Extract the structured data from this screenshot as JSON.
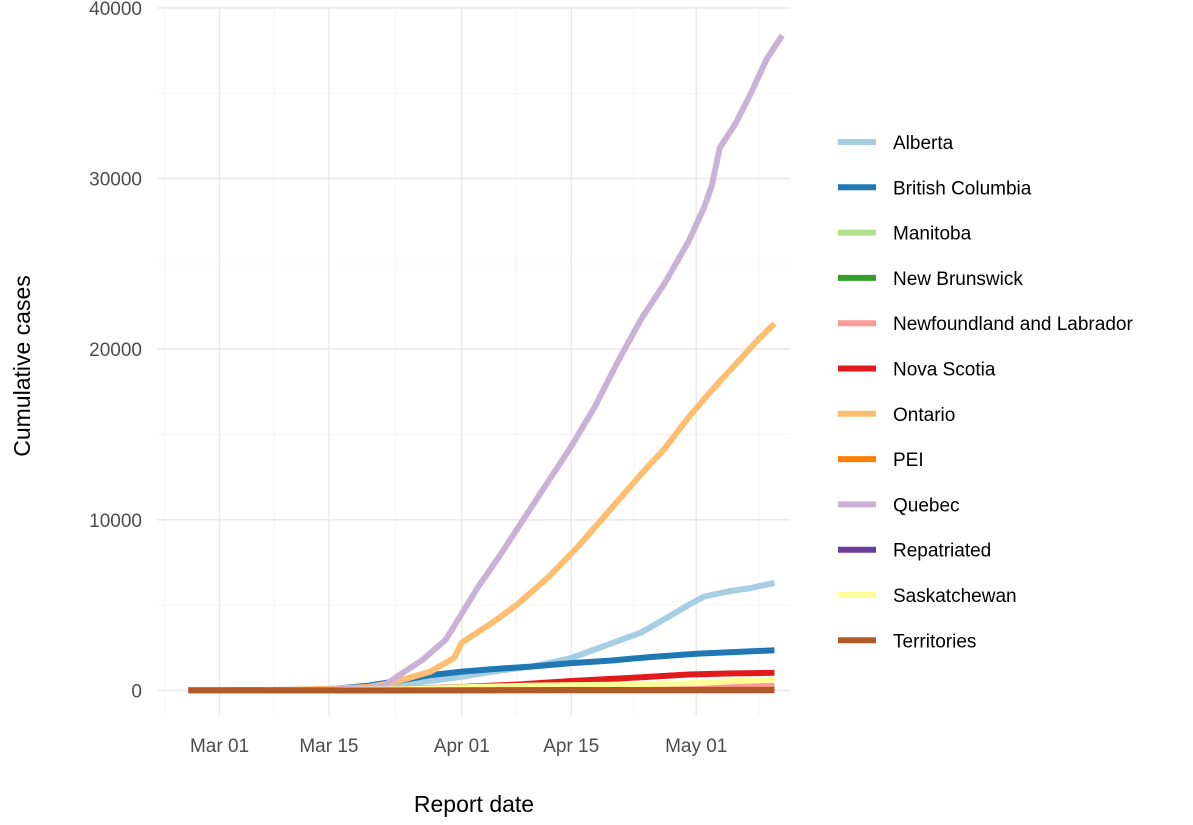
{
  "chart_data": {
    "type": "line",
    "title": "",
    "xlabel": "Report date",
    "ylabel": "Cumulative cases",
    "x_ticks": [
      "Mar 01",
      "Mar 15",
      "Apr 01",
      "Apr 15",
      "May 01"
    ],
    "y_ticks": [
      "0",
      "10000",
      "20000",
      "30000",
      "40000"
    ],
    "xlim": [
      "2020-02-22",
      "2020-05-13"
    ],
    "ylim": [
      -1500,
      40000
    ],
    "grid": true,
    "legend": "right",
    "series": [
      {
        "name": "Alberta",
        "color": "#a6cee3",
        "points": [
          [
            "2020-02-26",
            0
          ],
          [
            "2020-03-05",
            0
          ],
          [
            "2020-03-15",
            40
          ],
          [
            "2020-03-22",
            250
          ],
          [
            "2020-03-28",
            550
          ],
          [
            "2020-04-01",
            800
          ],
          [
            "2020-04-05",
            1100
          ],
          [
            "2020-04-10",
            1400
          ],
          [
            "2020-04-15",
            1900
          ],
          [
            "2020-04-18",
            2400
          ],
          [
            "2020-04-21",
            2900
          ],
          [
            "2020-04-24",
            3400
          ],
          [
            "2020-04-27",
            4200
          ],
          [
            "2020-04-30",
            5000
          ],
          [
            "2020-05-02",
            5500
          ],
          [
            "2020-05-05",
            5800
          ],
          [
            "2020-05-08",
            6000
          ],
          [
            "2020-05-11",
            6300
          ]
        ]
      },
      {
        "name": "British Columbia",
        "color": "#1f78b4",
        "points": [
          [
            "2020-02-26",
            0
          ],
          [
            "2020-03-05",
            10
          ],
          [
            "2020-03-10",
            30
          ],
          [
            "2020-03-15",
            70
          ],
          [
            "2020-03-20",
            270
          ],
          [
            "2020-03-25",
            650
          ],
          [
            "2020-03-28",
            900
          ],
          [
            "2020-04-01",
            1100
          ],
          [
            "2020-04-05",
            1250
          ],
          [
            "2020-04-10",
            1400
          ],
          [
            "2020-04-15",
            1600
          ],
          [
            "2020-04-20",
            1750
          ],
          [
            "2020-04-25",
            1950
          ],
          [
            "2020-05-01",
            2150
          ],
          [
            "2020-05-06",
            2250
          ],
          [
            "2020-05-11",
            2350
          ]
        ]
      },
      {
        "name": "Manitoba",
        "color": "#b2df8a",
        "points": [
          [
            "2020-02-26",
            0
          ],
          [
            "2020-03-15",
            5
          ],
          [
            "2020-03-25",
            50
          ],
          [
            "2020-04-01",
            150
          ],
          [
            "2020-04-10",
            230
          ],
          [
            "2020-04-20",
            260
          ],
          [
            "2020-05-01",
            275
          ],
          [
            "2020-05-11",
            285
          ]
        ]
      },
      {
        "name": "New Brunswick",
        "color": "#33a02c",
        "points": [
          [
            "2020-02-26",
            0
          ],
          [
            "2020-03-15",
            2
          ],
          [
            "2020-03-25",
            20
          ],
          [
            "2020-04-01",
            80
          ],
          [
            "2020-04-10",
            115
          ],
          [
            "2020-04-20",
            118
          ],
          [
            "2020-05-11",
            120
          ]
        ]
      },
      {
        "name": "Newfoundland and Labrador",
        "color": "#fb9a99",
        "points": [
          [
            "2020-02-26",
            0
          ],
          [
            "2020-03-15",
            2
          ],
          [
            "2020-03-22",
            30
          ],
          [
            "2020-03-28",
            150
          ],
          [
            "2020-04-01",
            200
          ],
          [
            "2020-04-10",
            240
          ],
          [
            "2020-04-20",
            255
          ],
          [
            "2020-05-11",
            261
          ]
        ]
      },
      {
        "name": "Nova Scotia",
        "color": "#e31a1c",
        "points": [
          [
            "2020-02-26",
            0
          ],
          [
            "2020-03-15",
            5
          ],
          [
            "2020-03-25",
            70
          ],
          [
            "2020-04-01",
            200
          ],
          [
            "2020-04-08",
            340
          ],
          [
            "2020-04-15",
            550
          ],
          [
            "2020-04-22",
            720
          ],
          [
            "2020-04-30",
            930
          ],
          [
            "2020-05-05",
            990
          ],
          [
            "2020-05-11",
            1030
          ]
        ]
      },
      {
        "name": "Ontario",
        "color": "#fdbf6f",
        "points": [
          [
            "2020-02-26",
            0
          ],
          [
            "2020-03-05",
            20
          ],
          [
            "2020-03-10",
            40
          ],
          [
            "2020-03-15",
            100
          ],
          [
            "2020-03-20",
            200
          ],
          [
            "2020-03-22",
            350
          ],
          [
            "2020-03-25",
            700
          ],
          [
            "2020-03-28",
            1100
          ],
          [
            "2020-03-31",
            1900
          ],
          [
            "2020-04-01",
            2800
          ],
          [
            "2020-04-05",
            4000
          ],
          [
            "2020-04-08",
            5000
          ],
          [
            "2020-04-12",
            6600
          ],
          [
            "2020-04-16",
            8500
          ],
          [
            "2020-04-20",
            10600
          ],
          [
            "2020-04-24",
            12700
          ],
          [
            "2020-04-27",
            14200
          ],
          [
            "2020-04-30",
            16000
          ],
          [
            "2020-05-03",
            17600
          ],
          [
            "2020-05-06",
            19100
          ],
          [
            "2020-05-09",
            20600
          ],
          [
            "2020-05-11",
            21500
          ]
        ]
      },
      {
        "name": "PEI",
        "color": "#ff7f00",
        "points": [
          [
            "2020-02-26",
            0
          ],
          [
            "2020-03-15",
            1
          ],
          [
            "2020-04-01",
            20
          ],
          [
            "2020-04-10",
            25
          ],
          [
            "2020-05-11",
            27
          ]
        ]
      },
      {
        "name": "Quebec",
        "color": "#cab2d6",
        "points": [
          [
            "2020-02-26",
            0
          ],
          [
            "2020-03-05",
            0
          ],
          [
            "2020-03-15",
            30
          ],
          [
            "2020-03-20",
            150
          ],
          [
            "2020-03-22",
            250
          ],
          [
            "2020-03-24",
            900
          ],
          [
            "2020-03-27",
            1800
          ],
          [
            "2020-03-30",
            3000
          ],
          [
            "2020-04-01",
            4500
          ],
          [
            "2020-04-03",
            6000
          ],
          [
            "2020-04-06",
            8000
          ],
          [
            "2020-04-08",
            9400
          ],
          [
            "2020-04-11",
            11500
          ],
          [
            "2020-04-15",
            14300
          ],
          [
            "2020-04-18",
            16600
          ],
          [
            "2020-04-21",
            19300
          ],
          [
            "2020-04-24",
            21800
          ],
          [
            "2020-04-27",
            23900
          ],
          [
            "2020-04-30",
            26300
          ],
          [
            "2020-05-02",
            28300
          ],
          [
            "2020-05-03",
            29600
          ],
          [
            "2020-05-04",
            31800
          ],
          [
            "2020-05-06",
            33200
          ],
          [
            "2020-05-08",
            35000
          ],
          [
            "2020-05-10",
            37000
          ],
          [
            "2020-05-12",
            38400
          ]
        ]
      },
      {
        "name": "Repatriated",
        "color": "#6a3d9a",
        "points": [
          [
            "2020-02-26",
            0
          ],
          [
            "2020-03-10",
            13
          ],
          [
            "2020-05-11",
            13
          ]
        ]
      },
      {
        "name": "Saskatchewan",
        "color": "#ffff99",
        "points": [
          [
            "2020-02-26",
            0
          ],
          [
            "2020-03-15",
            5
          ],
          [
            "2020-03-25",
            70
          ],
          [
            "2020-04-01",
            180
          ],
          [
            "2020-04-10",
            280
          ],
          [
            "2020-04-20",
            330
          ],
          [
            "2020-05-01",
            430
          ],
          [
            "2020-05-06",
            550
          ],
          [
            "2020-05-11",
            620
          ]
        ]
      },
      {
        "name": "Territories",
        "color": "#b15928",
        "points": [
          [
            "2020-02-26",
            0
          ],
          [
            "2020-03-20",
            2
          ],
          [
            "2020-04-01",
            15
          ],
          [
            "2020-04-15",
            25
          ],
          [
            "2020-05-11",
            28
          ]
        ]
      }
    ]
  }
}
